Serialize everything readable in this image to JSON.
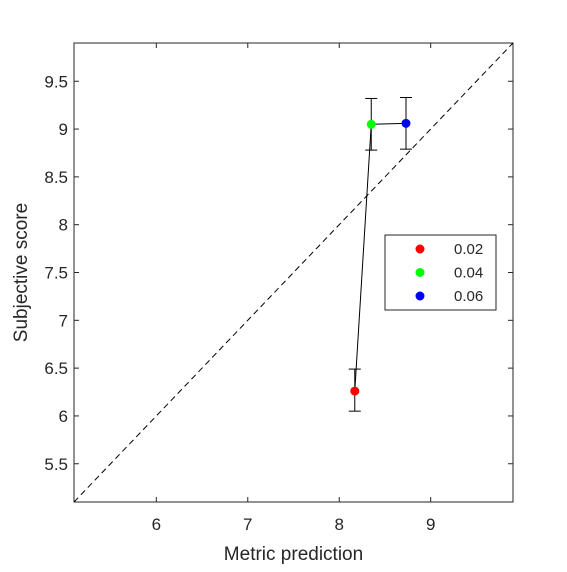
{
  "chart_data": {
    "type": "scatter",
    "xlabel": "Metric prediction",
    "ylabel": "Subjective score",
    "xlim": [
      5.1,
      9.9
    ],
    "ylim": [
      5.1,
      9.9
    ],
    "xticks": [
      6,
      7,
      8,
      9
    ],
    "yticks": [
      5.5,
      6,
      6.5,
      7,
      7.5,
      8,
      8.5,
      9,
      9.5
    ],
    "xtick_labels": [
      "6",
      "7",
      "8",
      "9"
    ],
    "ytick_labels": [
      "5.5",
      "6",
      "6.5",
      "7",
      "7.5",
      "8",
      "8.5",
      "9",
      "9.5"
    ],
    "grid": false,
    "reference_line": {
      "style": "dashed",
      "from": [
        5.1,
        5.1
      ],
      "to": [
        9.9,
        9.9
      ]
    },
    "connect_points": true,
    "legend_position": "right",
    "series": [
      {
        "name": "0.02",
        "color": "#ff0000",
        "x": 8.17,
        "y": 6.26,
        "y_low": 6.05,
        "y_high": 6.49
      },
      {
        "name": "0.04",
        "color": "#00ff00",
        "x": 8.35,
        "y": 9.05,
        "y_low": 8.78,
        "y_high": 9.32
      },
      {
        "name": "0.06",
        "color": "#0000ff",
        "x": 8.73,
        "y": 9.06,
        "y_low": 8.79,
        "y_high": 9.33
      }
    ]
  }
}
